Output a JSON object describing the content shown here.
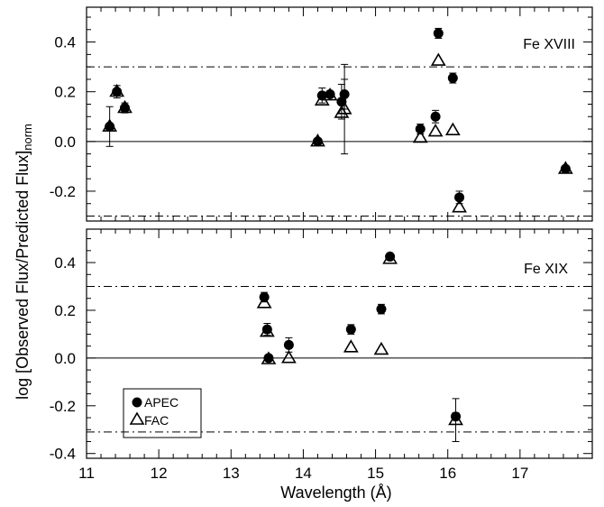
{
  "figure": {
    "ylabel_main": "log [Observed Flux/Predicted Flux]",
    "ylabel_sub": "norm",
    "xlabel": "Wavelength (Å)"
  },
  "legend": {
    "items": [
      {
        "label": "APEC",
        "marker": "filled-circle"
      },
      {
        "label": "FAC",
        "marker": "open-triangle"
      }
    ]
  },
  "chart_data": [
    {
      "type": "scatter",
      "panel": "top",
      "annotation": "Fe XVIII",
      "xlim": [
        11,
        18
      ],
      "ylim": [
        -0.32,
        0.54
      ],
      "xticks": [
        11,
        12,
        13,
        14,
        15,
        16,
        17
      ],
      "xtick_labels_shown": false,
      "yticks": [
        -0.2,
        0.0,
        0.2,
        0.4
      ],
      "ytick_labels": [
        "-0.2",
        "0.0",
        "0.2",
        "0.4"
      ],
      "reference_lines": [
        {
          "y": 0.3,
          "style": "dash-dot"
        },
        {
          "y": 0.0,
          "style": "solid"
        },
        {
          "y": -0.3,
          "style": "dash-dot"
        }
      ],
      "series": [
        {
          "name": "APEC",
          "marker": "filled-circle",
          "points": [
            {
              "x": 11.32,
              "y": 0.06,
              "err": 0.08
            },
            {
              "x": 11.42,
              "y": 0.2,
              "err": 0.025
            },
            {
              "x": 11.53,
              "y": 0.135,
              "err": 0.02
            },
            {
              "x": 14.2,
              "y": 0.0,
              "err": 0.01
            },
            {
              "x": 14.26,
              "y": 0.185,
              "err": 0.03
            },
            {
              "x": 14.37,
              "y": 0.19,
              "err": 0.01
            },
            {
              "x": 14.53,
              "y": 0.16,
              "err": 0.07
            },
            {
              "x": 14.57,
              "y": 0.19,
              "err": 0.06
            },
            {
              "x": 15.62,
              "y": 0.05,
              "err": 0.02
            },
            {
              "x": 15.83,
              "y": 0.1,
              "err": 0.025
            },
            {
              "x": 15.87,
              "y": 0.435,
              "err": 0.02
            },
            {
              "x": 16.07,
              "y": 0.255,
              "err": 0.02
            },
            {
              "x": 16.16,
              "y": -0.225,
              "err": 0.025
            },
            {
              "x": 17.63,
              "y": -0.11,
              "err": 0.0
            }
          ]
        },
        {
          "name": "FAC",
          "marker": "open-triangle",
          "points": [
            {
              "x": 11.32,
              "y": 0.06
            },
            {
              "x": 11.42,
              "y": 0.2
            },
            {
              "x": 11.53,
              "y": 0.135
            },
            {
              "x": 14.2,
              "y": 0.0
            },
            {
              "x": 14.26,
              "y": 0.165
            },
            {
              "x": 14.37,
              "y": 0.185
            },
            {
              "x": 14.53,
              "y": 0.115
            },
            {
              "x": 14.57,
              "y": 0.13,
              "err": 0.18
            },
            {
              "x": 15.62,
              "y": 0.015
            },
            {
              "x": 15.83,
              "y": 0.04
            },
            {
              "x": 15.87,
              "y": 0.325
            },
            {
              "x": 16.07,
              "y": 0.045
            },
            {
              "x": 16.16,
              "y": -0.265
            },
            {
              "x": 17.63,
              "y": -0.11
            }
          ]
        }
      ]
    },
    {
      "type": "scatter",
      "panel": "bottom",
      "annotation": "Fe XIX",
      "xlim": [
        11,
        18
      ],
      "ylim": [
        -0.42,
        0.54
      ],
      "xticks": [
        11,
        12,
        13,
        14,
        15,
        16,
        17
      ],
      "xtick_labels": [
        "11",
        "12",
        "13",
        "14",
        "15",
        "16",
        "17"
      ],
      "yticks": [
        -0.4,
        -0.2,
        0.0,
        0.2,
        0.4
      ],
      "ytick_labels": [
        "-0.4",
        "-0.2",
        "0.0",
        "0.2",
        "0.4"
      ],
      "reference_lines": [
        {
          "y": 0.3,
          "style": "dash-dot"
        },
        {
          "y": 0.0,
          "style": "solid"
        },
        {
          "y": -0.31,
          "style": "dash-dot"
        }
      ],
      "series": [
        {
          "name": "APEC",
          "marker": "filled-circle",
          "points": [
            {
              "x": 13.46,
              "y": 0.255,
              "err": 0.02
            },
            {
              "x": 13.5,
              "y": 0.12,
              "err": 0.025
            },
            {
              "x": 13.52,
              "y": 0.0,
              "err": 0.01
            },
            {
              "x": 13.8,
              "y": 0.055,
              "err": 0.03
            },
            {
              "x": 14.66,
              "y": 0.12,
              "err": 0.02
            },
            {
              "x": 15.08,
              "y": 0.205,
              "err": 0.02
            },
            {
              "x": 15.2,
              "y": 0.425,
              "err": 0.01
            },
            {
              "x": 16.11,
              "y": -0.245,
              "err": 0.015
            }
          ]
        },
        {
          "name": "FAC",
          "marker": "open-triangle",
          "points": [
            {
              "x": 13.46,
              "y": 0.23
            },
            {
              "x": 13.5,
              "y": 0.11
            },
            {
              "x": 13.52,
              "y": -0.005
            },
            {
              "x": 13.8,
              "y": 0.0
            },
            {
              "x": 14.66,
              "y": 0.045
            },
            {
              "x": 15.08,
              "y": 0.035
            },
            {
              "x": 15.2,
              "y": 0.415
            },
            {
              "x": 16.11,
              "y": -0.26,
              "err": 0.09
            }
          ]
        }
      ]
    }
  ]
}
